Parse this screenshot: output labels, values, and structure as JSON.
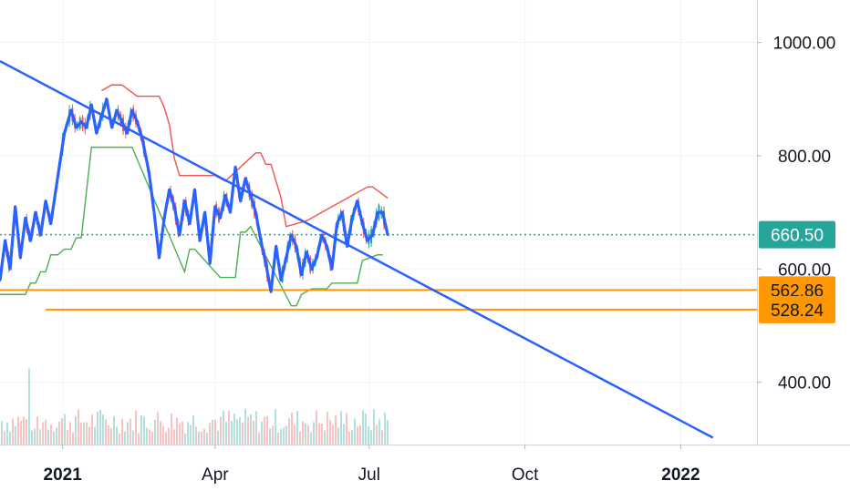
{
  "chart_data": {
    "type": "line",
    "title": "",
    "xlabel": "",
    "ylabel": "",
    "ylim": [
      290,
      1075
    ],
    "y_log_scale": false,
    "grid": true,
    "y_ticks": [
      "1000.00",
      "800.00",
      "600.00",
      "400.00"
    ],
    "y_tick_values": [
      1000,
      800,
      600,
      400
    ],
    "x_ticks": [
      {
        "label": "2021",
        "date": "2021-01-01",
        "bold": true
      },
      {
        "label": "Apr",
        "date": "2021-04-01",
        "bold": false
      },
      {
        "label": "Jul",
        "date": "2021-07-01",
        "bold": false
      },
      {
        "label": "Oct",
        "date": "2021-10-01",
        "bold": false
      },
      {
        "label": "2022",
        "date": "2022-01-01",
        "bold": true
      }
    ],
    "x_range": [
      "2020-11-25",
      "2022-02-15"
    ],
    "current_price": {
      "label": "660.50",
      "value": 660.5,
      "color": "#26a69a"
    },
    "horizontal_levels": [
      {
        "label": "562.86",
        "value": 562.86,
        "start": "2020-11-25",
        "color": "#ff9800"
      },
      {
        "label": "528.24",
        "value": 528.24,
        "start": "2020-12-22",
        "color": "#ff9800"
      }
    ],
    "trendline": {
      "start": {
        "date": "2020-11-25",
        "value": 967
      },
      "end": {
        "date": "2022-01-20",
        "value": 302
      },
      "color": "#2962ff"
    },
    "series": [
      {
        "type": "line",
        "color": "#2962ff",
        "x": [
          "2020-11-25",
          "2020-11-28",
          "2020-12-01",
          "2020-12-04",
          "2020-12-07",
          "2020-12-10",
          "2020-12-13",
          "2020-12-16",
          "2020-12-19",
          "2020-12-22",
          "2020-12-25",
          "2020-12-29",
          "2021-01-02",
          "2021-01-06",
          "2021-01-09",
          "2021-01-12",
          "2021-01-15",
          "2021-01-18",
          "2021-01-21",
          "2021-01-24",
          "2021-01-27",
          "2021-01-30",
          "2021-02-02",
          "2021-02-05",
          "2021-02-08",
          "2021-02-11",
          "2021-02-14",
          "2021-02-17",
          "2021-02-21",
          "2021-02-24",
          "2021-02-27",
          "2021-03-02",
          "2021-03-05",
          "2021-03-08",
          "2021-03-11",
          "2021-03-14",
          "2021-03-17",
          "2021-03-20",
          "2021-03-23",
          "2021-03-26",
          "2021-03-29",
          "2021-04-01",
          "2021-04-04",
          "2021-04-07",
          "2021-04-10",
          "2021-04-13",
          "2021-04-16",
          "2021-04-19",
          "2021-04-22",
          "2021-04-25",
          "2021-04-28",
          "2021-05-01",
          "2021-05-04",
          "2021-05-07",
          "2021-05-10",
          "2021-05-13",
          "2021-05-16",
          "2021-05-19",
          "2021-05-22",
          "2021-05-25",
          "2021-05-28",
          "2021-05-31",
          "2021-06-03",
          "2021-06-06",
          "2021-06-09",
          "2021-06-12",
          "2021-06-15",
          "2021-06-18",
          "2021-06-21",
          "2021-06-24",
          "2021-06-27",
          "2021-06-30",
          "2021-07-03",
          "2021-07-06",
          "2021-07-09",
          "2021-07-12"
        ],
        "values": [
          580,
          650,
          600,
          710,
          620,
          690,
          650,
          700,
          660,
          720,
          680,
          760,
          840,
          880,
          850,
          860,
          850,
          890,
          840,
          870,
          900,
          850,
          880,
          860,
          840,
          880,
          860,
          830,
          770,
          700,
          620,
          690,
          740,
          710,
          660,
          720,
          680,
          740,
          650,
          700,
          610,
          710,
          690,
          730,
          700,
          780,
          720,
          760,
          730,
          700,
          650,
          610,
          560,
          640,
          580,
          620,
          660,
          640,
          590,
          630,
          600,
          620,
          660,
          640,
          600,
          680,
          700,
          640,
          690,
          720,
          680,
          650,
          660,
          700,
          700,
          660
        ]
      }
    ]
  }
}
